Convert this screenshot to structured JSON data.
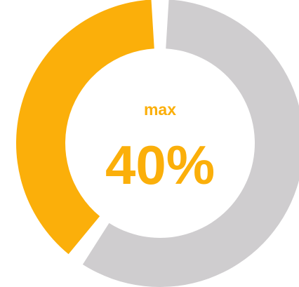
{
  "chart_data": {
    "type": "pie",
    "style": "donut",
    "values": [
      40,
      60
    ],
    "colors": [
      "#FBAF0A",
      "#CFCDCF"
    ],
    "center_label": "max",
    "center_value": "40%",
    "text_color": "#FBAF0A"
  }
}
